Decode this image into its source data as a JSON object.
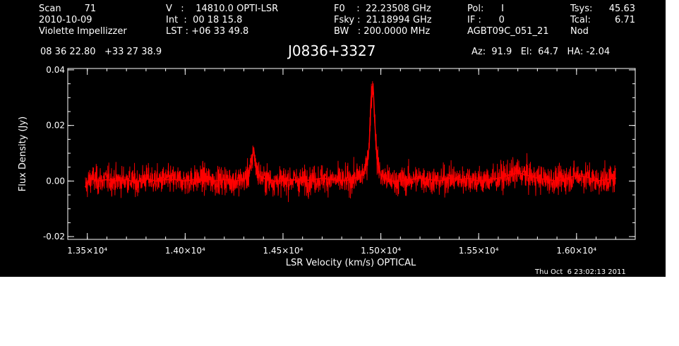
{
  "header": {
    "col1": [
      "Scan        71",
      "2010-10-09",
      "Violette Impellizzer"
    ],
    "col2": [
      "V   :    14810.0 OPTI-LSR",
      "Int  :  00 18 15.8",
      "LST : +06 33 49.8"
    ],
    "col3": [
      "F0    :  22.23508 GHz",
      "Fsky :  21.18994 GHz",
      "BW   : 200.0000 MHz"
    ],
    "col4": [
      "Pol:      I",
      "IF :      0",
      "AGBT09C_051_21"
    ],
    "col5_labels": [
      "Tsys:",
      "Tcal:",
      "Nod"
    ],
    "col5_values": [
      "45.63",
      "6.71",
      ""
    ],
    "coords": "08 36 22.80   +33 27 38.9",
    "source": "J0836+3327",
    "pointing": "Az:  91.9   El:  64.7   HA: -2.04",
    "timestamp": "Thu Oct  6 23:02:13 2011"
  },
  "chart_data": {
    "type": "line",
    "title": "J0836+3327",
    "xlabel": "LSR Velocity (km/s) OPTICAL",
    "ylabel": "Flux Density (Jy)",
    "xlim": [
      13400,
      16300
    ],
    "ylim": [
      -0.021,
      0.0405
    ],
    "xticks": [
      {
        "value": 13500,
        "label": "1.35×10⁴"
      },
      {
        "value": 14000,
        "label": "1.40×10⁴"
      },
      {
        "value": 14500,
        "label": "1.45×10⁴"
      },
      {
        "value": 15000,
        "label": "1.50×10⁴"
      },
      {
        "value": 15500,
        "label": "1.55×10⁴"
      },
      {
        "value": 16000,
        "label": "1.60×10⁴"
      }
    ],
    "yticks": [
      {
        "value": -0.02,
        "label": "-0.02"
      },
      {
        "value": 0.0,
        "label": "0.00"
      },
      {
        "value": 0.02,
        "label": "0.02"
      },
      {
        "value": 0.04,
        "label": "0.04"
      }
    ],
    "grid": false,
    "series": [
      {
        "color": "#ff0000",
        "x": [
          13490,
          13520,
          13550,
          13600,
          13650,
          13700,
          13750,
          13800,
          13850,
          13900,
          13950,
          14000,
          14050,
          14100,
          14150,
          14200,
          14250,
          14300,
          14320,
          14340,
          14350,
          14360,
          14380,
          14400,
          14450,
          14500,
          14550,
          14600,
          14650,
          14700,
          14750,
          14800,
          14850,
          14900,
          14920,
          14940,
          14950,
          14960,
          14970,
          14980,
          15000,
          15050,
          15100,
          15150,
          15200,
          15250,
          15300,
          15350,
          15400,
          15450,
          15500,
          15550,
          15600,
          15650,
          15700,
          15750,
          15800,
          15850,
          15900,
          15950,
          16000,
          16050,
          16100,
          16150,
          16200
        ],
        "y": [
          -0.002,
          0.001,
          0.0,
          0.0005,
          0.0,
          0.0005,
          -0.0005,
          0.001,
          0.0,
          0.0005,
          0.0005,
          0.0,
          0.0005,
          0.001,
          0.0,
          0.0005,
          0.0,
          0.0005,
          0.002,
          0.006,
          0.012,
          0.005,
          0.002,
          0.001,
          0.0,
          0.0,
          0.0005,
          0.0,
          0.0005,
          0.001,
          0.0005,
          0.0,
          0.0005,
          0.002,
          0.004,
          0.012,
          0.03,
          0.035,
          0.02,
          0.008,
          0.002,
          0.0,
          0.0,
          0.0005,
          0.001,
          0.0005,
          0.0,
          0.001,
          0.0005,
          0.001,
          0.0,
          0.0005,
          0.001,
          0.002,
          0.003,
          0.002,
          0.001,
          0.0005,
          0.0,
          0.001,
          0.002,
          0.0015,
          0.0,
          0.0005,
          0.001
        ]
      }
    ]
  }
}
